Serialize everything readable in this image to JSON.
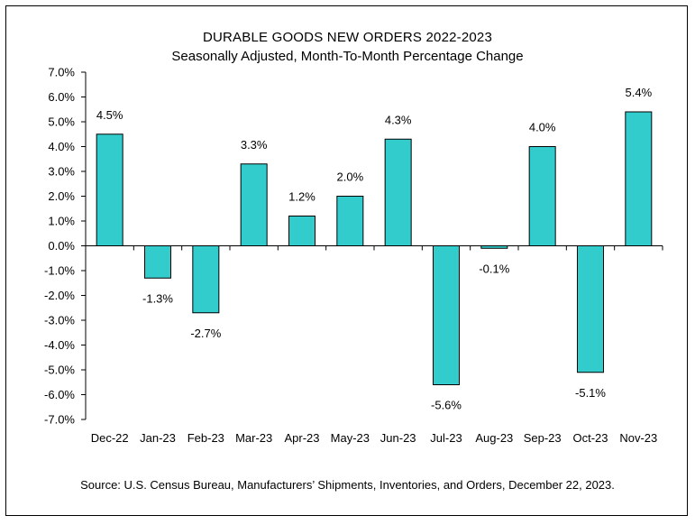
{
  "chart_data": {
    "type": "bar",
    "title": "DURABLE GOODS NEW ORDERS 2022-2023",
    "subtitle": "Seasonally Adjusted,  Month-To-Month Percentage Change",
    "categories": [
      "Dec-22",
      "Jan-23",
      "Feb-23",
      "Mar-23",
      "Apr-23",
      "May-23",
      "Jun-23",
      "Jul-23",
      "Aug-23",
      "Sep-23",
      "Oct-23",
      "Nov-23"
    ],
    "values": [
      4.5,
      -1.3,
      -2.7,
      3.3,
      1.2,
      2.0,
      4.3,
      -5.6,
      -0.1,
      4.0,
      -5.1,
      5.4
    ],
    "value_labels": [
      "4.5%",
      "-1.3%",
      "-2.7%",
      "3.3%",
      "1.2%",
      "2.0%",
      "4.3%",
      "-5.6%",
      "-0.1%",
      "4.0%",
      "-5.1%",
      "5.4%"
    ],
    "ylim": [
      -7.0,
      7.0
    ],
    "ytick_step": 1.0,
    "ytick_labels": [
      "7.0%",
      "6.0%",
      "5.0%",
      "4.0%",
      "3.0%",
      "2.0%",
      "1.0%",
      "0.0%",
      "-1.0%",
      "-2.0%",
      "-3.0%",
      "-4.0%",
      "-5.0%",
      "-6.0%",
      "-7.0%"
    ],
    "xlabel": "",
    "ylabel": "",
    "bar_color": "#33CCCC",
    "bar_edge_color": "#000000",
    "grid": false,
    "legend": false
  },
  "source": "Source: U.S. Census Bureau, Manufacturers’ Shipments, Inventories, and Orders, December 22, 2023."
}
